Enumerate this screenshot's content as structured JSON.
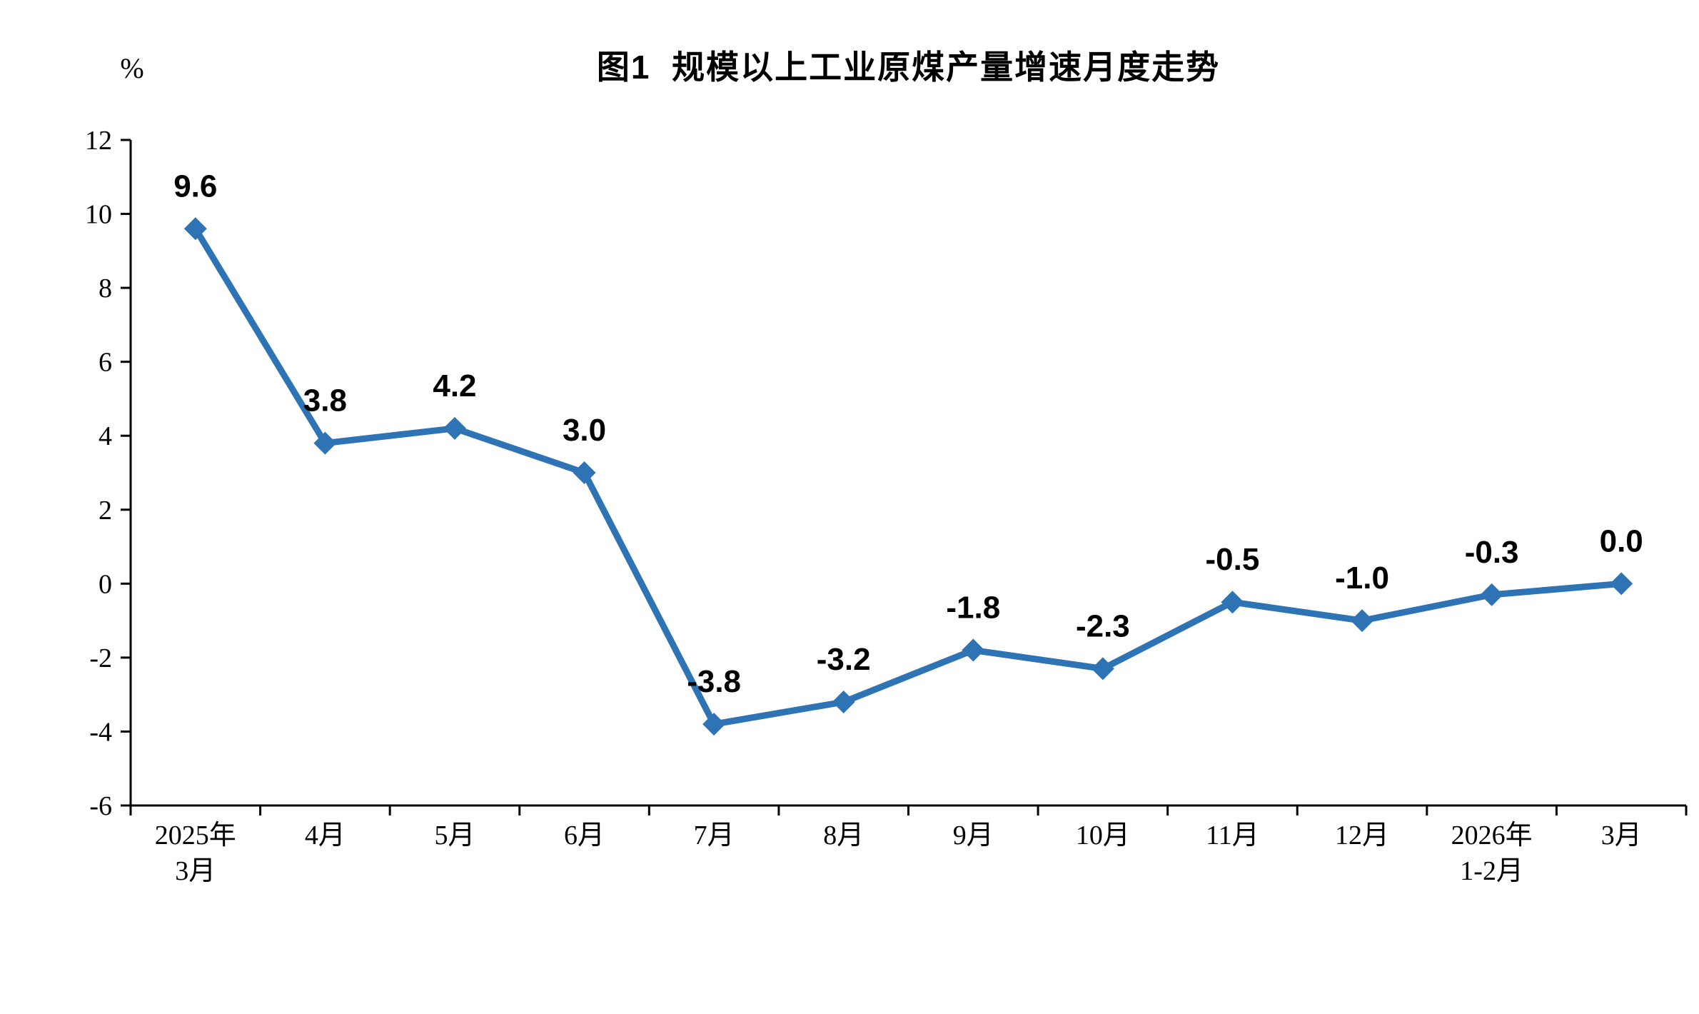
{
  "page": {
    "background": "#ffffff",
    "text_color": "#000000"
  },
  "chart_data": {
    "type": "line",
    "title": "图1  规模以上工业原煤产量增速月度走势",
    "xlabel": "",
    "ylabel": "%",
    "ylim": [
      -6,
      12
    ],
    "ytick_step": 2,
    "yticks": [
      12,
      10,
      8,
      6,
      4,
      2,
      0,
      -2,
      -4,
      -6
    ],
    "grid": false,
    "legend": "none",
    "categories": [
      [
        "2025年",
        "3月"
      ],
      [
        "4月"
      ],
      [
        "5月"
      ],
      [
        "6月"
      ],
      [
        "7月"
      ],
      [
        "8月"
      ],
      [
        "9月"
      ],
      [
        "10月"
      ],
      [
        "11月"
      ],
      [
        "12月"
      ],
      [
        "2026年",
        "1-2月"
      ],
      [
        "3月"
      ]
    ],
    "series": [
      {
        "values": [
          9.6,
          3.8,
          4.2,
          3.0,
          -3.8,
          -3.2,
          -1.8,
          -2.3,
          -0.5,
          -1.0,
          -0.3,
          0.0
        ],
        "labels": [
          "9.6",
          "3.8",
          "4.2",
          "3.0",
          "-3.8",
          "-3.2",
          "-1.8",
          "-2.3",
          "-0.5",
          "-1.0",
          "-0.3",
          "0.0"
        ],
        "color": "#2E74B5",
        "marker": "diamond"
      }
    ]
  }
}
